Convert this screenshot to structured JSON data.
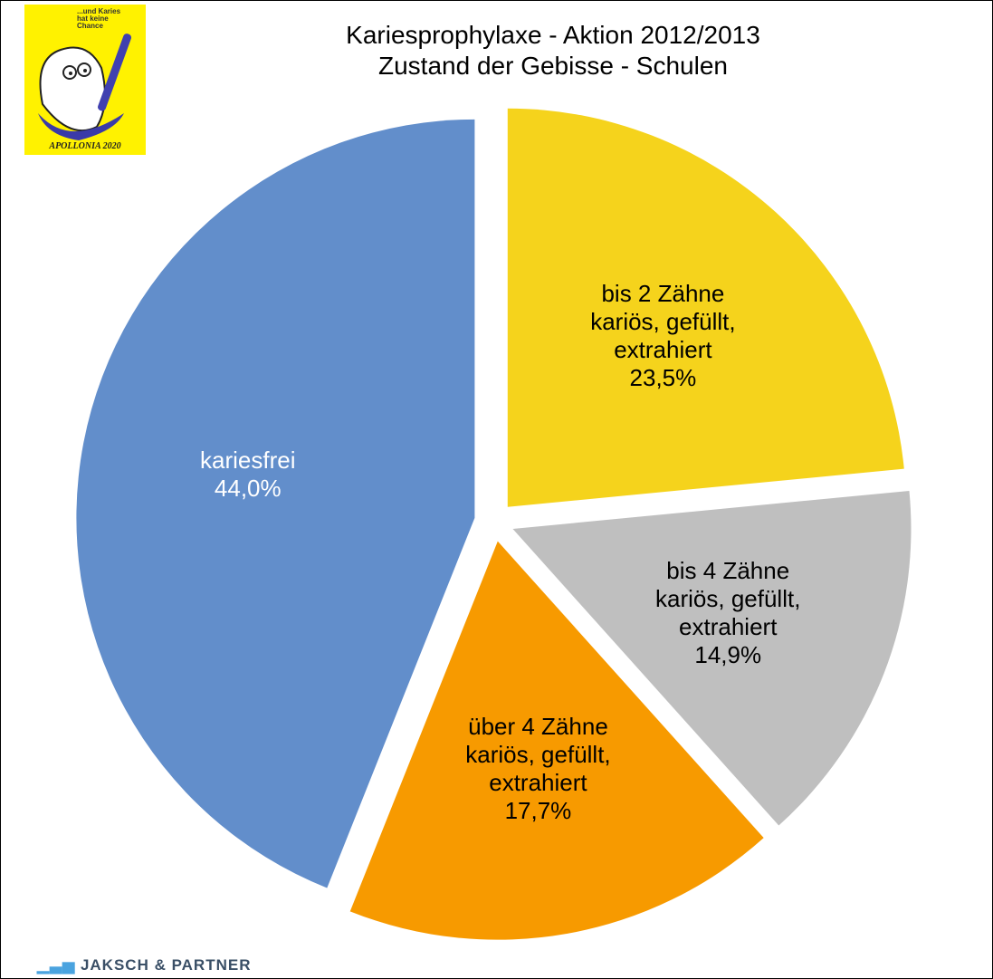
{
  "logo": {
    "slogan": "...und Karies hat keine Chance",
    "name": "APOLLONIA 2020"
  },
  "footer": {
    "brand": "JAKSCH & PARTNER"
  },
  "chart_data": {
    "type": "pie",
    "title": "Kariesprophylaxe - Aktion 2012/2013",
    "subtitle": "Zustand der Gebisse - Schulen",
    "categories": [
      "bis 2 Zähne kariös, gefüllt, extrahiert",
      "bis 4 Zähne kariös, gefüllt, extrahiert",
      "über 4 Zähne kariös, gefüllt, extrahiert",
      "kariesfrei"
    ],
    "values": [
      23.5,
      14.9,
      17.7,
      44.0
    ],
    "value_labels": [
      "23,5%",
      "14,9%",
      "17,7%",
      "44,0%"
    ],
    "colors": [
      "#f5d31c",
      "#bfbfbf",
      "#f79a00",
      "#628ecb"
    ],
    "label_colors": [
      "#000000",
      "#000000",
      "#000000",
      "#ffffff"
    ]
  }
}
